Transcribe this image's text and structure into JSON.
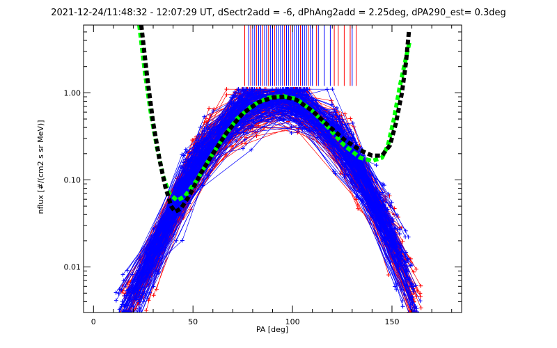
{
  "chart_data": {
    "type": "line",
    "title": "2021-12-24/11:48:32 - 12:07:29 UT, dSectr2add = -6, dPhAng2add = 2.25deg, dPA290_est=   0.3deg",
    "xlabel": "PA [deg]",
    "ylabel": "nflux [#/(cm2 s sr MeV)]",
    "xlim": [
      -5,
      185
    ],
    "ylim": [
      0.003,
      6
    ],
    "yscale": "log",
    "grid": false,
    "x_ticks": [
      {
        "value": 0,
        "label": "0"
      },
      {
        "value": 50,
        "label": "50"
      },
      {
        "value": 100,
        "label": "100"
      },
      {
        "value": 150,
        "label": "150"
      }
    ],
    "y_ticks": [
      {
        "value": 0.01,
        "label": "0.01"
      },
      {
        "value": 0.1,
        "label": "0.10"
      },
      {
        "value": 1,
        "label": "1.00"
      }
    ],
    "colors": {
      "red": "#ff0000",
      "blue": "#0000ff",
      "green_fit": "#00ff00",
      "black_fit": "#000000",
      "axis": "#000000"
    },
    "series": [
      {
        "style": "green-dashed-thick",
        "color": "#00ff00",
        "x": [
          23,
          26,
          29,
          32,
          35,
          38,
          42,
          46,
          52,
          58,
          65,
          72,
          80,
          88,
          95,
          102,
          110,
          118,
          126,
          134,
          140,
          145,
          148,
          151,
          154,
          157,
          159
        ],
        "y": [
          6.0,
          1.6,
          0.55,
          0.23,
          0.11,
          0.07,
          0.058,
          0.065,
          0.1,
          0.17,
          0.3,
          0.5,
          0.72,
          0.88,
          0.92,
          0.85,
          0.62,
          0.4,
          0.25,
          0.18,
          0.165,
          0.18,
          0.25,
          0.5,
          1.2,
          2.5,
          4.0
        ]
      },
      {
        "style": "black-dashed-thick",
        "color": "#000000",
        "x": [
          24,
          27,
          30,
          33,
          36,
          39,
          41,
          44,
          48,
          54,
          60,
          67,
          75,
          83,
          90,
          96,
          102,
          110,
          118,
          126,
          134,
          140,
          145,
          149,
          152,
          155,
          157,
          158.5
        ],
        "y": [
          6.0,
          1.5,
          0.45,
          0.18,
          0.085,
          0.05,
          0.043,
          0.047,
          0.065,
          0.12,
          0.2,
          0.35,
          0.58,
          0.78,
          0.88,
          0.9,
          0.83,
          0.62,
          0.42,
          0.29,
          0.22,
          0.19,
          0.19,
          0.25,
          0.45,
          1.0,
          2.2,
          5.0
        ]
      }
    ],
    "scatter_groups": [
      {
        "color": "#ff0000",
        "marker": "plus-connected",
        "x_range": [
          15,
          163
        ],
        "y_range": [
          0.003,
          1.1
        ],
        "count": 120
      },
      {
        "color": "#0000ff",
        "marker": "plus-connected",
        "x_range": [
          14,
          162
        ],
        "y_range": [
          0.003,
          1.1
        ],
        "count": 160
      }
    ],
    "vertical_marks": {
      "red_x": [
        76,
        79,
        82,
        85,
        88,
        91,
        96,
        99,
        104,
        108,
        112,
        121,
        123,
        126,
        129,
        132
      ],
      "blue_x": [
        78,
        80,
        81,
        83,
        84,
        86,
        87,
        89,
        90,
        92,
        93,
        94,
        95,
        97,
        98,
        100,
        101,
        102,
        103,
        105,
        106,
        107,
        109,
        110,
        113,
        116,
        119,
        130
      ],
      "y_from": 1.2,
      "y_to": 6.0
    }
  }
}
